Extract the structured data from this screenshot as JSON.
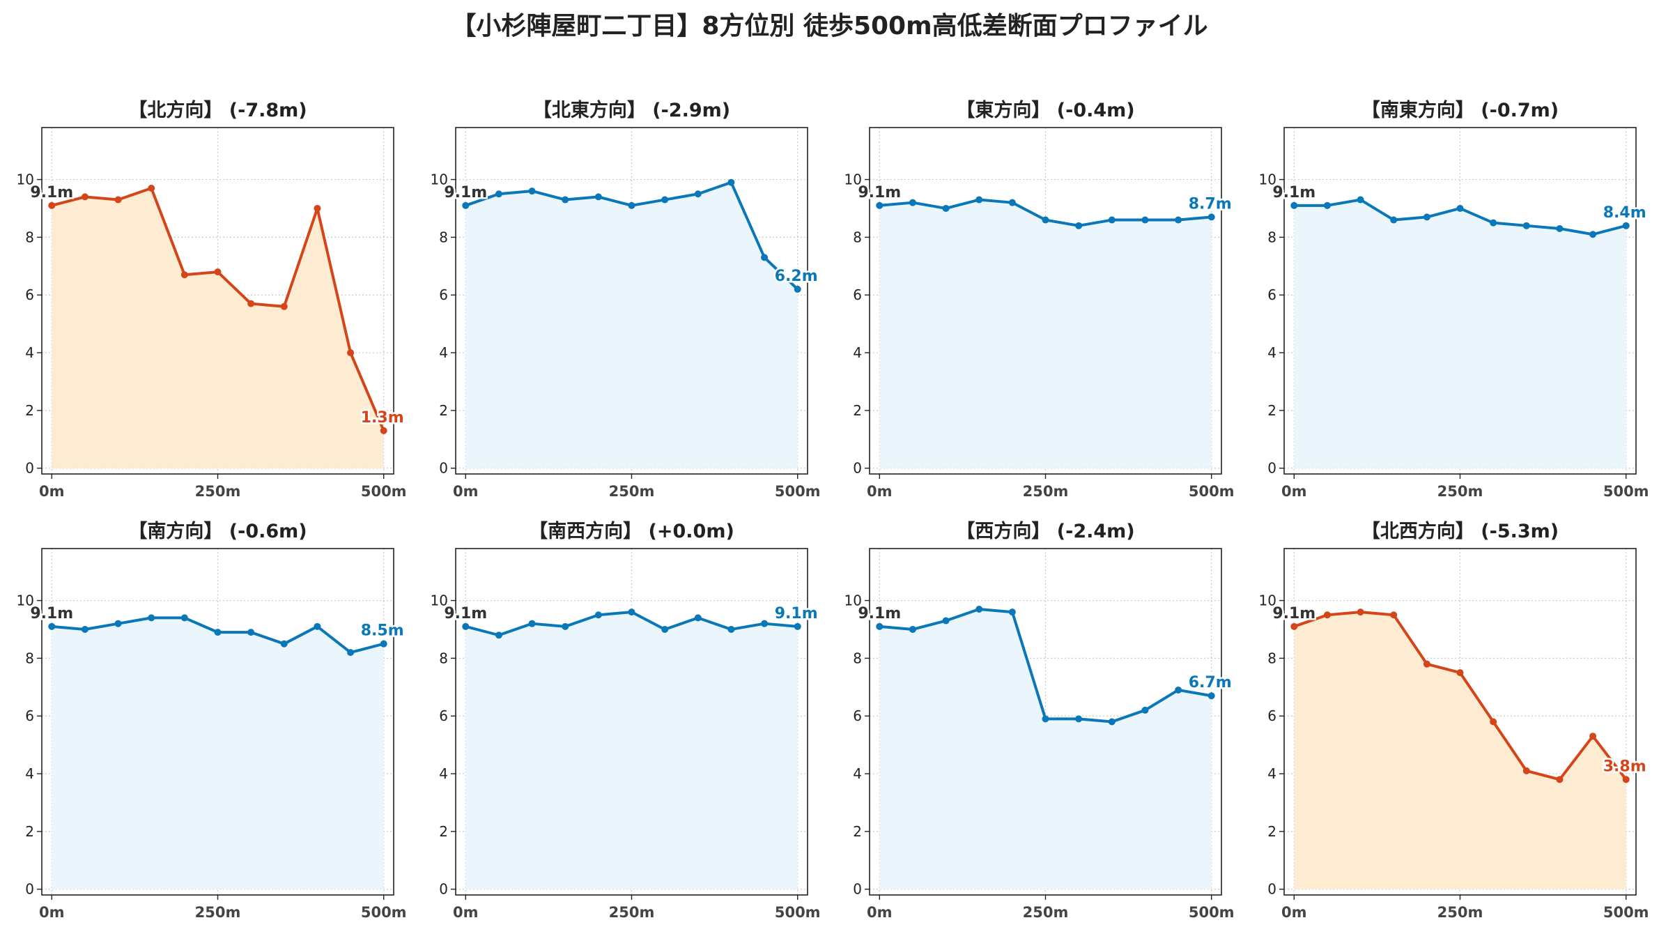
{
  "title": "【小杉陣屋町二丁目】8方位別 徒歩500m高低差断面プロファイル",
  "colors": {
    "uphill_line": "#0a77b9",
    "uphill_fill": "#eaf6fc",
    "downhill_line": "#d4461a",
    "downhill_fill": "#fdecd2",
    "start_label": "#333333",
    "grid": "#c9c9c9",
    "tick": "#444444"
  },
  "chart_data": [
    {
      "type": "area",
      "title": "【北方向】 (-7.8m)",
      "trend": "down",
      "x": [
        0,
        50,
        100,
        150,
        200,
        250,
        300,
        350,
        400,
        450,
        500
      ],
      "y": [
        9.1,
        9.4,
        9.3,
        9.7,
        6.7,
        6.8,
        5.7,
        5.6,
        9.0,
        4.0,
        1.3
      ],
      "start_label": "9.1m",
      "end_label": "1.3m",
      "xticks": [
        "0m",
        "250m",
        "500m"
      ],
      "yticks": [
        0,
        2,
        4,
        6,
        8,
        10
      ],
      "xlim": [
        -15,
        515
      ],
      "ylim": [
        -0.2,
        11.8
      ],
      "grid": true
    },
    {
      "type": "area",
      "title": "【北東方向】 (-2.9m)",
      "trend": "up",
      "x": [
        0,
        50,
        100,
        150,
        200,
        250,
        300,
        350,
        400,
        450,
        500
      ],
      "y": [
        9.1,
        9.5,
        9.6,
        9.3,
        9.4,
        9.1,
        9.3,
        9.5,
        9.9,
        7.3,
        6.2
      ],
      "start_label": "9.1m",
      "end_label": "6.2m",
      "xticks": [
        "0m",
        "250m",
        "500m"
      ],
      "yticks": [
        0,
        2,
        4,
        6,
        8,
        10
      ],
      "xlim": [
        -15,
        515
      ],
      "ylim": [
        -0.2,
        11.8
      ],
      "grid": true
    },
    {
      "type": "area",
      "title": "【東方向】 (-0.4m)",
      "trend": "up",
      "x": [
        0,
        50,
        100,
        150,
        200,
        250,
        300,
        350,
        400,
        450,
        500
      ],
      "y": [
        9.1,
        9.2,
        9.0,
        9.3,
        9.2,
        8.6,
        8.4,
        8.6,
        8.6,
        8.6,
        8.7
      ],
      "start_label": "9.1m",
      "end_label": "8.7m",
      "xticks": [
        "0m",
        "250m",
        "500m"
      ],
      "yticks": [
        0,
        2,
        4,
        6,
        8,
        10
      ],
      "xlim": [
        -15,
        515
      ],
      "ylim": [
        -0.2,
        11.8
      ],
      "grid": true
    },
    {
      "type": "area",
      "title": "【南東方向】 (-0.7m)",
      "trend": "up",
      "x": [
        0,
        50,
        100,
        150,
        200,
        250,
        300,
        350,
        400,
        450,
        500
      ],
      "y": [
        9.1,
        9.1,
        9.3,
        8.6,
        8.7,
        9.0,
        8.5,
        8.4,
        8.3,
        8.1,
        8.4
      ],
      "start_label": "9.1m",
      "end_label": "8.4m",
      "xticks": [
        "0m",
        "250m",
        "500m"
      ],
      "yticks": [
        0,
        2,
        4,
        6,
        8,
        10
      ],
      "xlim": [
        -15,
        515
      ],
      "ylim": [
        -0.2,
        11.8
      ],
      "grid": true
    },
    {
      "type": "area",
      "title": "【南方向】 (-0.6m)",
      "trend": "up",
      "x": [
        0,
        50,
        100,
        150,
        200,
        250,
        300,
        350,
        400,
        450,
        500
      ],
      "y": [
        9.1,
        9.0,
        9.2,
        9.4,
        9.4,
        8.9,
        8.9,
        8.5,
        9.1,
        8.2,
        8.5
      ],
      "start_label": "9.1m",
      "end_label": "8.5m",
      "xticks": [
        "0m",
        "250m",
        "500m"
      ],
      "yticks": [
        0,
        2,
        4,
        6,
        8,
        10
      ],
      "xlim": [
        -15,
        515
      ],
      "ylim": [
        -0.2,
        11.8
      ],
      "grid": true
    },
    {
      "type": "area",
      "title": "【南西方向】 (+0.0m)",
      "trend": "up",
      "x": [
        0,
        50,
        100,
        150,
        200,
        250,
        300,
        350,
        400,
        450,
        500
      ],
      "y": [
        9.1,
        8.8,
        9.2,
        9.1,
        9.5,
        9.6,
        9.0,
        9.4,
        9.0,
        9.2,
        9.1
      ],
      "start_label": "9.1m",
      "end_label": "9.1m",
      "xticks": [
        "0m",
        "250m",
        "500m"
      ],
      "yticks": [
        0,
        2,
        4,
        6,
        8,
        10
      ],
      "xlim": [
        -15,
        515
      ],
      "ylim": [
        -0.2,
        11.8
      ],
      "grid": true
    },
    {
      "type": "area",
      "title": "【西方向】 (-2.4m)",
      "trend": "up",
      "x": [
        0,
        50,
        100,
        150,
        200,
        250,
        300,
        350,
        400,
        450,
        500
      ],
      "y": [
        9.1,
        9.0,
        9.3,
        9.7,
        9.6,
        5.9,
        5.9,
        5.8,
        6.2,
        6.9,
        6.7
      ],
      "start_label": "9.1m",
      "end_label": "6.7m",
      "xticks": [
        "0m",
        "250m",
        "500m"
      ],
      "yticks": [
        0,
        2,
        4,
        6,
        8,
        10
      ],
      "xlim": [
        -15,
        515
      ],
      "ylim": [
        -0.2,
        11.8
      ],
      "grid": true
    },
    {
      "type": "area",
      "title": "【北西方向】 (-5.3m)",
      "trend": "down",
      "x": [
        0,
        50,
        100,
        150,
        200,
        250,
        300,
        350,
        400,
        450,
        500
      ],
      "y": [
        9.1,
        9.5,
        9.6,
        9.5,
        7.8,
        7.5,
        5.8,
        4.1,
        3.8,
        5.3,
        3.8
      ],
      "start_label": "9.1m",
      "end_label": "3.8m",
      "xticks": [
        "0m",
        "250m",
        "500m"
      ],
      "yticks": [
        0,
        2,
        4,
        6,
        8,
        10
      ],
      "xlim": [
        -15,
        515
      ],
      "ylim": [
        -0.2,
        11.8
      ],
      "grid": true
    }
  ]
}
